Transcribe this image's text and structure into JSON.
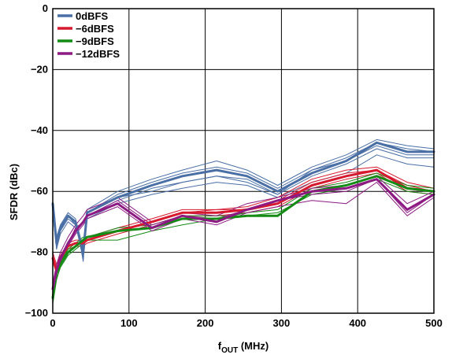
{
  "chart_data": {
    "type": "line",
    "title": "",
    "xlabel_main": "f",
    "xlabel_sub": "OUT",
    "xlabel_unit": " (MHz)",
    "ylabel": "SFDR (dBc)",
    "xlim": [
      0,
      500
    ],
    "ylim": [
      -100,
      0
    ],
    "xticks": [
      0,
      100,
      200,
      300,
      400,
      500
    ],
    "xtick_labels": [
      "0",
      "100",
      "200",
      "300",
      "400",
      "500"
    ],
    "yticks": [
      0,
      -20,
      -40,
      -60,
      -80,
      -100
    ],
    "ytick_labels": [
      "0",
      "−20",
      "−40",
      "−60",
      "−80",
      "−100"
    ],
    "grid": true,
    "legend_position": "top-left",
    "legend": [
      {
        "label": "0dBFS",
        "color": "#4a6fa5"
      },
      {
        "label": "−6dBFS",
        "color": "#d7192f"
      },
      {
        "label": "−9dBFS",
        "color": "#138b15"
      },
      {
        "label": "−12dBFS",
        "color": "#8c1a82"
      }
    ],
    "series": [
      {
        "legend_index": 0,
        "color": "#4a6fa5",
        "width": 3,
        "x": [
          0,
          5,
          10,
          20,
          30,
          40,
          45,
          85,
          130,
          170,
          215,
          255,
          295,
          340,
          385,
          425,
          465,
          500
        ],
        "y": [
          -64,
          -77,
          -72,
          -68,
          -70,
          -80,
          -67,
          -62,
          -58,
          -55,
          -53,
          -55,
          -60,
          -54,
          -50,
          -44,
          -47,
          -47
        ]
      },
      {
        "legend_index": 0,
        "color": "#4a6fa5",
        "width": 1,
        "x": [
          0,
          5,
          10,
          20,
          30,
          40,
          45,
          85,
          130,
          170,
          215,
          255,
          295,
          340,
          385,
          425,
          465,
          500
        ],
        "y": [
          -63,
          -75,
          -71,
          -67,
          -69,
          -83,
          -66,
          -60,
          -56,
          -53,
          -50,
          -53,
          -58,
          -52,
          -48,
          -43,
          -45,
          -46
        ]
      },
      {
        "legend_index": 0,
        "color": "#4a6fa5",
        "width": 1,
        "x": [
          0,
          5,
          10,
          20,
          30,
          40,
          45,
          85,
          130,
          170,
          215,
          255,
          295,
          340,
          385,
          425,
          465,
          500
        ],
        "y": [
          -65,
          -76,
          -72,
          -68,
          -71,
          -82,
          -67,
          -61,
          -57,
          -54,
          -52,
          -54,
          -59,
          -53,
          -49,
          -44,
          -46,
          -47
        ]
      },
      {
        "legend_index": 0,
        "color": "#4a6fa5",
        "width": 1,
        "x": [
          0,
          5,
          10,
          20,
          30,
          40,
          45,
          85,
          130,
          170,
          215,
          255,
          295,
          340,
          385,
          425,
          465,
          500
        ],
        "y": [
          -66,
          -78,
          -73,
          -69,
          -71,
          -78,
          -68,
          -63,
          -59,
          -57,
          -55,
          -57,
          -61,
          -55,
          -51,
          -46,
          -49,
          -49
        ]
      },
      {
        "legend_index": 0,
        "color": "#4a6fa5",
        "width": 1,
        "x": [
          0,
          5,
          10,
          20,
          30,
          40,
          45,
          85,
          130,
          170,
          215,
          255,
          295,
          340,
          385,
          425,
          465,
          500
        ],
        "y": [
          -67,
          -79,
          -74,
          -70,
          -72,
          -79,
          -69,
          -64,
          -61,
          -59,
          -57,
          -58,
          -62,
          -57,
          -54,
          -48,
          -51,
          -52
        ]
      },
      {
        "legend_index": 0,
        "color": "#4a6fa5",
        "width": 1,
        "x": [
          0,
          5,
          10,
          20,
          30,
          40,
          45,
          85,
          130,
          170,
          215,
          255,
          295,
          340,
          385,
          425,
          465,
          500
        ],
        "y": [
          -65,
          -77,
          -73,
          -68,
          -70,
          -81,
          -67,
          -62,
          -60,
          -57,
          -55,
          -56,
          -61,
          -53,
          -50,
          -45,
          -48,
          -48
        ]
      },
      {
        "legend_index": 1,
        "color": "#d7192f",
        "width": 3,
        "x": [
          0,
          5,
          10,
          20,
          30,
          40,
          45,
          85,
          130,
          170,
          215,
          255,
          295,
          340,
          385,
          425,
          465,
          500
        ],
        "y": [
          -82,
          -86,
          -82,
          -78,
          -77,
          -77,
          -76,
          -73,
          -70,
          -67,
          -67,
          -66,
          -64,
          -58,
          -55,
          -53,
          -59,
          -60
        ]
      },
      {
        "legend_index": 1,
        "color": "#d7192f",
        "width": 1,
        "x": [
          0,
          5,
          10,
          20,
          30,
          40,
          45,
          85,
          130,
          170,
          215,
          255,
          295,
          340,
          385,
          425,
          465,
          500
        ],
        "y": [
          -80,
          -84,
          -81,
          -77,
          -76,
          -76,
          -75,
          -72,
          -69,
          -66,
          -66,
          -65,
          -62,
          -56,
          -53,
          -52,
          -57,
          -59
        ]
      },
      {
        "legend_index": 1,
        "color": "#d7192f",
        "width": 1,
        "x": [
          0,
          5,
          10,
          20,
          30,
          40,
          45,
          85,
          130,
          170,
          215,
          255,
          295,
          340,
          385,
          425,
          465,
          500
        ],
        "y": [
          -83,
          -87,
          -83,
          -79,
          -78,
          -78,
          -77,
          -74,
          -71,
          -68,
          -68,
          -67,
          -65,
          -59,
          -56,
          -54,
          -60,
          -61
        ]
      },
      {
        "legend_index": 1,
        "color": "#d7192f",
        "width": 1,
        "x": [
          0,
          5,
          10,
          20,
          30,
          40,
          45,
          85,
          130,
          170,
          215,
          255,
          295,
          340,
          385,
          425,
          465,
          500
        ],
        "y": [
          -81,
          -85,
          -82,
          -78,
          -77,
          -77,
          -76,
          -73,
          -70,
          -67,
          -66,
          -66,
          -63,
          -57,
          -54,
          -53,
          -58,
          -60
        ]
      },
      {
        "legend_index": 2,
        "color": "#138b15",
        "width": 3,
        "x": [
          0,
          5,
          10,
          20,
          30,
          40,
          45,
          85,
          130,
          170,
          215,
          255,
          295,
          340,
          385,
          425,
          465,
          500
        ],
        "y": [
          -95,
          -87,
          -84,
          -80,
          -78,
          -76,
          -75,
          -73,
          -72,
          -69,
          -69,
          -68,
          -68,
          -60,
          -58,
          -55,
          -59,
          -60
        ]
      },
      {
        "legend_index": 2,
        "color": "#138b15",
        "width": 1,
        "x": [
          0,
          5,
          10,
          20,
          30,
          40,
          45,
          85,
          130,
          170,
          215,
          255,
          295,
          340,
          385,
          425,
          465,
          500
        ],
        "y": [
          -97,
          -89,
          -85,
          -81,
          -79,
          -77,
          -76,
          -76,
          -73,
          -71,
          -69,
          -67,
          -66,
          -59,
          -57,
          -54,
          -58,
          -59
        ]
      },
      {
        "legend_index": 2,
        "color": "#138b15",
        "width": 1,
        "x": [
          0,
          5,
          10,
          20,
          30,
          40,
          45,
          85,
          130,
          170,
          215,
          255,
          295,
          340,
          385,
          425,
          465,
          500
        ],
        "y": [
          -93,
          -86,
          -83,
          -79,
          -77,
          -75,
          -75,
          -72,
          -71,
          -68,
          -68,
          -68,
          -67,
          -61,
          -59,
          -56,
          -60,
          -61
        ]
      },
      {
        "legend_index": 3,
        "color": "#8c1a82",
        "width": 3,
        "x": [
          0,
          5,
          10,
          20,
          30,
          40,
          45,
          85,
          130,
          170,
          215,
          255,
          295,
          340,
          385,
          425,
          465,
          500
        ],
        "y": [
          -92,
          -86,
          -82,
          -77,
          -73,
          -70,
          -68,
          -64,
          -72,
          -68,
          -70,
          -66,
          -63,
          -60,
          -59,
          -56,
          -66,
          -61
        ]
      },
      {
        "legend_index": 3,
        "color": "#8c1a82",
        "width": 1,
        "x": [
          0,
          5,
          10,
          20,
          30,
          40,
          45,
          85,
          130,
          170,
          215,
          255,
          295,
          340,
          385,
          425,
          465,
          500
        ],
        "y": [
          -90,
          -84,
          -80,
          -75,
          -71,
          -68,
          -66,
          -62,
          -70,
          -67,
          -68,
          -64,
          -62,
          -59,
          -58,
          -55,
          -64,
          -60
        ]
      },
      {
        "legend_index": 3,
        "color": "#8c1a82",
        "width": 1,
        "x": [
          0,
          5,
          10,
          20,
          30,
          40,
          45,
          85,
          130,
          170,
          215,
          255,
          295,
          340,
          385,
          425,
          465,
          500
        ],
        "y": [
          -94,
          -87,
          -83,
          -78,
          -74,
          -71,
          -69,
          -65,
          -73,
          -69,
          -71,
          -67,
          -65,
          -63,
          -64,
          -57,
          -68,
          -62
        ]
      },
      {
        "legend_index": 3,
        "color": "#8c1a82",
        "width": 1,
        "x": [
          0,
          5,
          10,
          20,
          30,
          40,
          45,
          85,
          130,
          170,
          215,
          255,
          295,
          340,
          385,
          425,
          465,
          500
        ],
        "y": [
          -93,
          -86,
          -82,
          -77,
          -72,
          -70,
          -68,
          -63,
          -71,
          -68,
          -69,
          -66,
          -63,
          -61,
          -60,
          -56,
          -67,
          -61
        ]
      }
    ]
  }
}
